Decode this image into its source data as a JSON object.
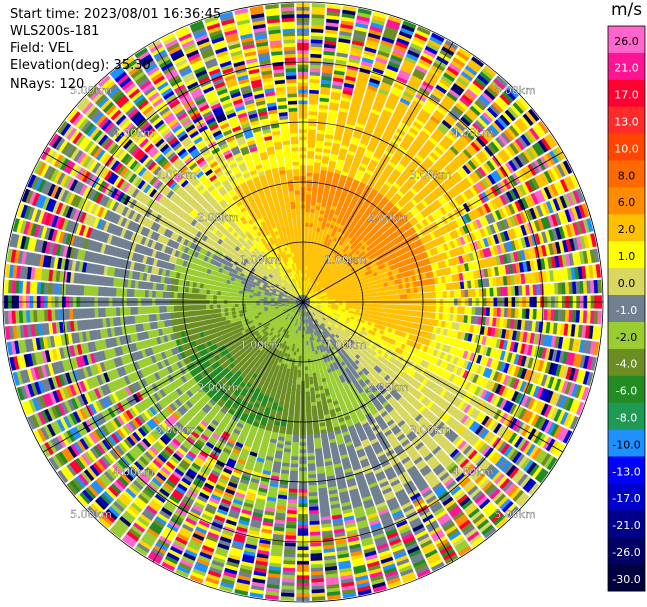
{
  "header": {
    "start_time": "Start time: 2023/08/01 16:36:45",
    "site": "WLS200s-181",
    "field": "Field: VEL",
    "elevation": "Elevation(deg): 35.30",
    "nrays": "NRays: 120"
  },
  "chart_data": {
    "type": "heatmap",
    "subtype": "polar-ppi",
    "title": "",
    "field": "VEL",
    "units": "m/s",
    "n_rays": 120,
    "max_range_km": 5.0,
    "range_rings_km": [
      1.0,
      2.0,
      3.0,
      4.0,
      5.0
    ],
    "range_ring_labels": [
      "1.00km",
      "2.00km",
      "3.00km",
      "4.00km",
      "5.00km"
    ],
    "azimuth_lines_deg": [
      0,
      30,
      60,
      90,
      120,
      150,
      180,
      210,
      240,
      270,
      300,
      330
    ],
    "colorbar": {
      "unit_label": "m/s",
      "tick_labels": [
        "26.0",
        "21.0",
        "17.0",
        "13.0",
        "10.0",
        "8.0",
        "6.0",
        "2.0",
        "1.0",
        "0.0",
        "-1.0",
        "-2.0",
        "-4.0",
        "-6.0",
        "-8.0",
        "-10.0",
        "-13.0",
        "-17.0",
        "-21.0",
        "-26.0",
        "-30.0"
      ],
      "colors": [
        "#ff66cc",
        "#ff1493",
        "#ff0030",
        "#ff2a2a",
        "#ff4500",
        "#ff6a00",
        "#ff8c00",
        "#ffc000",
        "#ffff00",
        "#d8d860",
        "#708090",
        "#9acd32",
        "#6b8e23",
        "#228b22",
        "#1e9a55",
        "#1e90ff",
        "#0000ff",
        "#0000cd",
        "#00008b",
        "#000066",
        "#000040"
      ]
    },
    "pattern": {
      "near_field_range_km": [
        0.0,
        2.6
      ],
      "near_field_gradient": "positive (receding) velocities 1-6 m/s toward the northeast half, negative (approaching) -1 to -6 m/s toward the southwest half",
      "far_field": "noisy mixed velocities beyond ~3.5 km"
    }
  }
}
